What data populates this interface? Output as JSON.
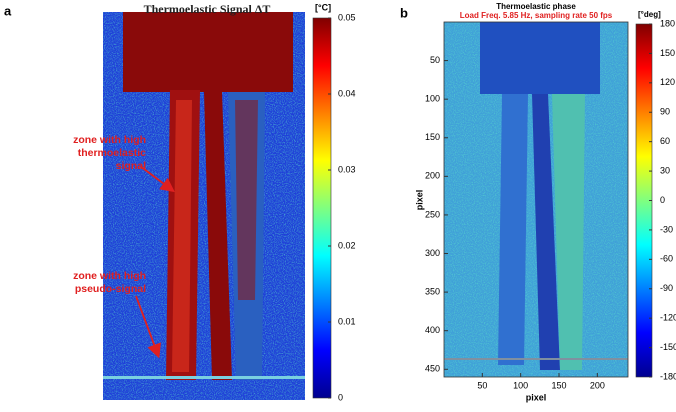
{
  "chart_data": [
    {
      "type": "heatmap",
      "panel": "a",
      "title": "Thermoelastic Signal ΔT",
      "colorbar_label": "[°C]",
      "clim": [
        0,
        0.05
      ],
      "cticks": [
        0,
        0.01,
        0.02,
        0.03,
        0.04,
        0.05
      ],
      "annotations": [
        [
          "zone with high",
          "thermoelastic",
          "signal"
        ],
        [
          "zone with high",
          "pseudo-signal"
        ]
      ]
    },
    {
      "type": "heatmap",
      "panel": "b",
      "title": "Thermoelastic phase",
      "subtitle": "Load Freq. 5.85 Hz, sampling rate 50 fps",
      "colorbar_label": "[°deg]",
      "clim": [
        -180,
        180
      ],
      "cticks": [
        -180,
        -150,
        -120,
        -90,
        -60,
        -30,
        0,
        30,
        60,
        90,
        120,
        150,
        180
      ],
      "xlabel": "pixel",
      "ylabel": "pixel",
      "xlim": [
        0,
        240
      ],
      "ylim": [
        0,
        460
      ],
      "xticks": [
        50,
        100,
        150,
        200
      ],
      "yticks": [
        50,
        100,
        150,
        200,
        250,
        300,
        350,
        400,
        450
      ]
    }
  ]
}
